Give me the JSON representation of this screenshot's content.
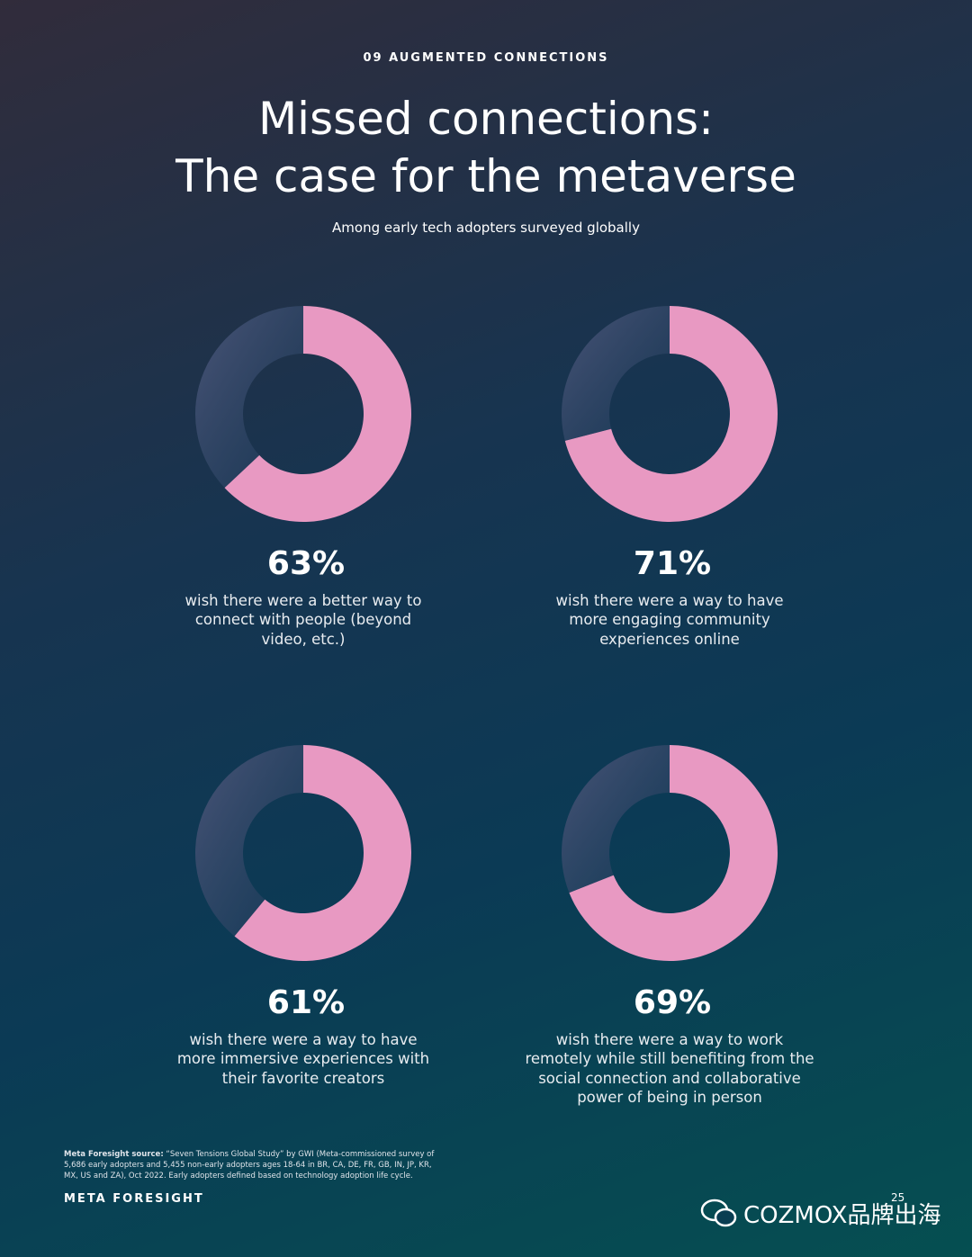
{
  "header": {
    "section": "09 AUGMENTED CONNECTIONS",
    "title_lines": [
      "Missed connections:",
      "The case for the metaverse"
    ],
    "subtitle": "Among early tech adopters surveyed globally"
  },
  "chart_data": [
    {
      "type": "donut",
      "values": [
        63,
        37
      ],
      "value_labels": [
        "63%",
        null
      ],
      "colors": [
        "#e899c2",
        "#3c4a6e"
      ],
      "description": [
        "wish there were a better way to",
        "connect with people (beyond",
        "video, etc.)"
      ]
    },
    {
      "type": "donut",
      "values": [
        71,
        29
      ],
      "value_labels": [
        "71%",
        null
      ],
      "colors": [
        "#e899c2",
        "#3c4a6e"
      ],
      "description": [
        "wish there were a way to have",
        "more engaging community",
        "experiences online"
      ]
    },
    {
      "type": "donut",
      "values": [
        61,
        39
      ],
      "value_labels": [
        "61%",
        null
      ],
      "colors": [
        "#e899c2",
        "#3c4a6e"
      ],
      "description": [
        "wish there were a way to have",
        "more immersive experiences with",
        "their favorite creators"
      ]
    },
    {
      "type": "donut",
      "values": [
        69,
        31
      ],
      "value_labels": [
        "69%",
        null
      ],
      "colors": [
        "#e899c2",
        "#3c4a6e"
      ],
      "description": [
        "wish there were a way to work",
        "remotely while still benefiting from the",
        "social connection and collaborative",
        "power of being in person"
      ]
    }
  ],
  "footer": {
    "source_label": "Meta Foresight source:",
    "source_lines": [
      "“Seven Tensions Global Study” by GWI (Meta-commissioned survey of",
      "5,686 early adopters and 5,455 non-early adopters ages 18-64 in BR, CA, DE, FR, GB, IN, JP, KR,",
      "MX, US and ZA), Oct 2022. Early adopters defined based on technology adoption life cycle."
    ],
    "brand": "META FORESIGHT",
    "page": "25",
    "watermark": "COZMOX品牌出海"
  }
}
